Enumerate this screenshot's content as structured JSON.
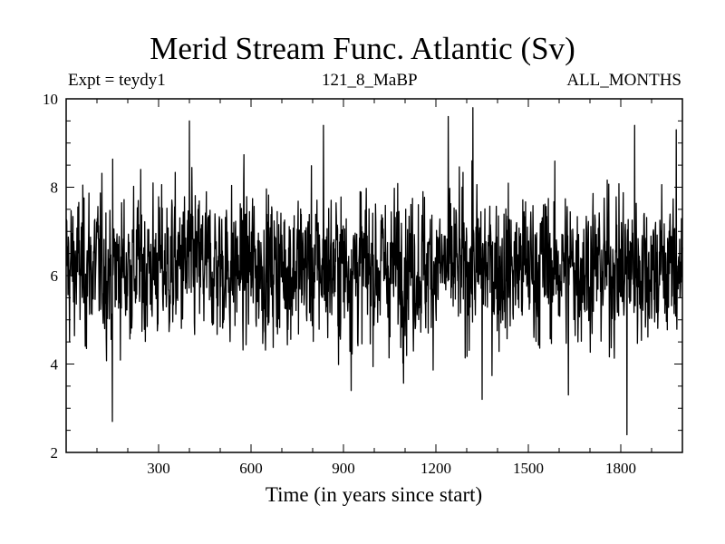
{
  "chart_data": {
    "type": "line",
    "title": "Merid Stream Func. Atlantic (Sv)",
    "subtitle_left": "Expt = teydy1",
    "subtitle_center": "121_8_MaBP",
    "subtitle_right": "ALL_MONTHS",
    "xlabel": "Time (in years since start)",
    "ylabel": "",
    "xlim": [
      0,
      2000
    ],
    "ylim": [
      2,
      10
    ],
    "xticks": [
      300,
      600,
      900,
      1200,
      1500,
      1800
    ],
    "yticks": [
      2,
      4,
      6,
      8,
      10
    ],
    "grid": false,
    "series": [
      {
        "name": "Merid Stream Func. Atlantic",
        "color": "#000000",
        "x_start": 1,
        "x_step": 1,
        "n_points": 2000,
        "mean": 6.2,
        "typical_range": [
          4.5,
          8.0
        ],
        "notable_points": [
          {
            "x": 150,
            "y": 2.7
          },
          {
            "x": 400,
            "y": 9.5
          },
          {
            "x": 835,
            "y": 9.4
          },
          {
            "x": 925,
            "y": 3.4
          },
          {
            "x": 1240,
            "y": 9.6
          },
          {
            "x": 1320,
            "y": 9.8
          },
          {
            "x": 1350,
            "y": 3.2
          },
          {
            "x": 1630,
            "y": 3.3
          },
          {
            "x": 1820,
            "y": 2.4
          },
          {
            "x": 1845,
            "y": 9.4
          },
          {
            "x": 1980,
            "y": 9.3
          }
        ]
      }
    ]
  }
}
